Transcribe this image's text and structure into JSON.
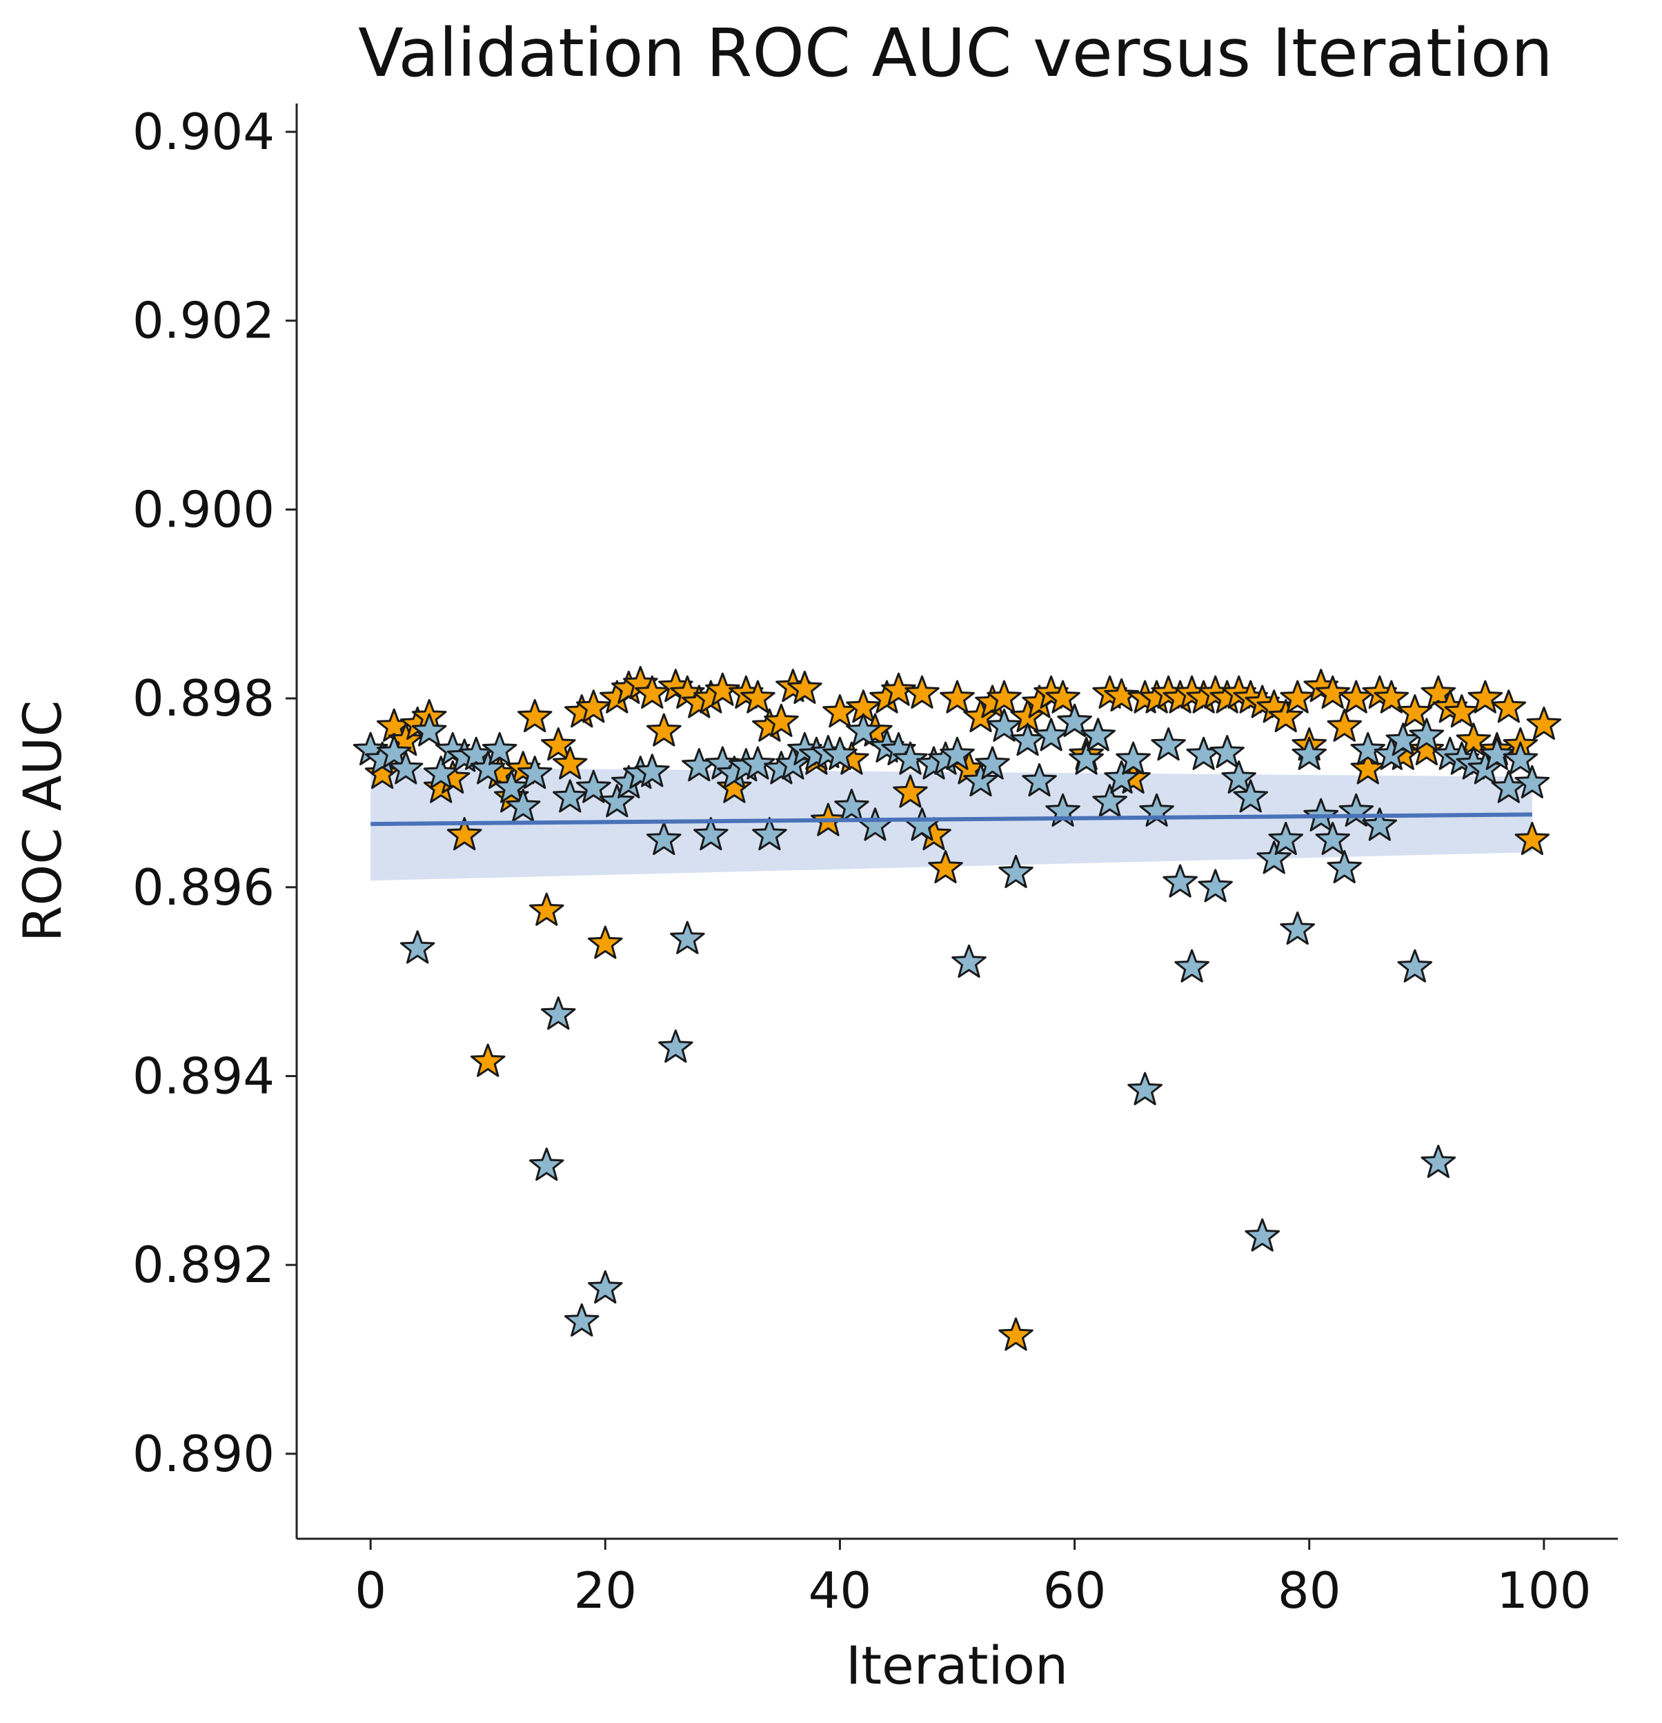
{
  "chart_data": {
    "type": "scatter",
    "title": "Validation ROC AUC versus Iteration",
    "xlabel": "Iteration",
    "ylabel": "ROC AUC",
    "xlim": [
      -6.3,
      106.3
    ],
    "ylim": [
      0.8891,
      0.9043
    ],
    "xticks": [
      0,
      20,
      40,
      60,
      80,
      100
    ],
    "yticks": [
      0.89,
      0.892,
      0.894,
      0.896,
      0.898,
      0.9,
      0.902,
      0.904
    ],
    "xtick_labels": [
      "0",
      "20",
      "40",
      "60",
      "80",
      "100"
    ],
    "ytick_labels": [
      "0.890",
      "0.892",
      "0.894",
      "0.896",
      "0.898",
      "0.900",
      "0.902",
      "0.904"
    ],
    "grid": false,
    "series": [
      {
        "name": "orange",
        "color": "#f5a000",
        "marker": "star",
        "points": [
          [
            0,
            0.89745
          ],
          [
            1,
            0.8972
          ],
          [
            2,
            0.8977
          ],
          [
            3,
            0.89755
          ],
          [
            4,
            0.89772
          ],
          [
            5,
            0.8978
          ],
          [
            6,
            0.89705
          ],
          [
            7,
            0.89715
          ],
          [
            8,
            0.89655
          ],
          [
            10,
            0.89415
          ],
          [
            11,
            0.8972
          ],
          [
            12,
            0.89695
          ],
          [
            13,
            0.89725
          ],
          [
            14,
            0.8978
          ],
          [
            15,
            0.89575
          ],
          [
            16,
            0.8975
          ],
          [
            17,
            0.8973
          ],
          [
            18,
            0.89785
          ],
          [
            19,
            0.8979
          ],
          [
            20,
            0.8954
          ],
          [
            21,
            0.898
          ],
          [
            22,
            0.8981
          ],
          [
            23,
            0.89815
          ],
          [
            24,
            0.89805
          ],
          [
            25,
            0.89765
          ],
          [
            26,
            0.89812
          ],
          [
            27,
            0.89805
          ],
          [
            28,
            0.89795
          ],
          [
            29,
            0.898
          ],
          [
            30,
            0.89808
          ],
          [
            31,
            0.89705
          ],
          [
            32,
            0.89805
          ],
          [
            33,
            0.898
          ],
          [
            34,
            0.8977
          ],
          [
            35,
            0.89775
          ],
          [
            36,
            0.89812
          ],
          [
            37,
            0.8981
          ],
          [
            38,
            0.89735
          ],
          [
            39,
            0.8967
          ],
          [
            40,
            0.89785
          ],
          [
            41,
            0.89735
          ],
          [
            42,
            0.8979
          ],
          [
            43,
            0.89765
          ],
          [
            44,
            0.898
          ],
          [
            45,
            0.89808
          ],
          [
            46,
            0.897
          ],
          [
            47,
            0.89805
          ],
          [
            48,
            0.89655
          ],
          [
            49,
            0.8962
          ],
          [
            50,
            0.898
          ],
          [
            51,
            0.89725
          ],
          [
            52,
            0.8978
          ],
          [
            53,
            0.89795
          ],
          [
            54,
            0.898
          ],
          [
            55,
            0.89125
          ],
          [
            56,
            0.8978
          ],
          [
            57,
            0.89795
          ],
          [
            58,
            0.89805
          ],
          [
            59,
            0.898
          ],
          [
            60,
            0.89775
          ],
          [
            61,
            0.8974
          ],
          [
            62,
            0.8976
          ],
          [
            63,
            0.89805
          ],
          [
            64,
            0.89802
          ],
          [
            65,
            0.89715
          ],
          [
            66,
            0.898
          ],
          [
            67,
            0.898
          ],
          [
            68,
            0.89805
          ],
          [
            69,
            0.898
          ],
          [
            70,
            0.89805
          ],
          [
            71,
            0.898
          ],
          [
            72,
            0.89805
          ],
          [
            73,
            0.898
          ],
          [
            74,
            0.89805
          ],
          [
            75,
            0.898
          ],
          [
            76,
            0.89795
          ],
          [
            77,
            0.8979
          ],
          [
            78,
            0.8978
          ],
          [
            79,
            0.898
          ],
          [
            80,
            0.8975
          ],
          [
            81,
            0.89812
          ],
          [
            82,
            0.89805
          ],
          [
            83,
            0.8977
          ],
          [
            84,
            0.898
          ],
          [
            85,
            0.89725
          ],
          [
            86,
            0.89805
          ],
          [
            87,
            0.898
          ],
          [
            88,
            0.8974
          ],
          [
            89,
            0.89785
          ],
          [
            90,
            0.89745
          ],
          [
            91,
            0.89805
          ],
          [
            92,
            0.8979
          ],
          [
            93,
            0.89785
          ],
          [
            94,
            0.89755
          ],
          [
            95,
            0.898
          ],
          [
            96,
            0.89745
          ],
          [
            97,
            0.8979
          ],
          [
            98,
            0.8975
          ],
          [
            99,
            0.8965
          ],
          [
            100,
            0.89772
          ]
        ]
      },
      {
        "name": "blue",
        "color": "#8cb7cf",
        "marker": "star",
        "points": [
          [
            0,
            0.89745
          ],
          [
            1,
            0.89735
          ],
          [
            2,
            0.89742
          ],
          [
            3,
            0.89725
          ],
          [
            4,
            0.89535
          ],
          [
            5,
            0.89765
          ],
          [
            6,
            0.8972
          ],
          [
            7,
            0.89745
          ],
          [
            8,
            0.89738
          ],
          [
            9,
            0.8974
          ],
          [
            10,
            0.89725
          ],
          [
            11,
            0.89745
          ],
          [
            12,
            0.89705
          ],
          [
            13,
            0.89685
          ],
          [
            14,
            0.8972
          ],
          [
            15,
            0.89305
          ],
          [
            16,
            0.89465
          ],
          [
            17,
            0.89695
          ],
          [
            18,
            0.8914
          ],
          [
            19,
            0.89705
          ],
          [
            20,
            0.89175
          ],
          [
            21,
            0.8969
          ],
          [
            22,
            0.8971
          ],
          [
            23,
            0.8972
          ],
          [
            24,
            0.89722
          ],
          [
            25,
            0.8965
          ],
          [
            26,
            0.8943
          ],
          [
            27,
            0.89545
          ],
          [
            28,
            0.89728
          ],
          [
            29,
            0.89655
          ],
          [
            30,
            0.8973
          ],
          [
            31,
            0.8972
          ],
          [
            32,
            0.89728
          ],
          [
            33,
            0.8973
          ],
          [
            34,
            0.89655
          ],
          [
            35,
            0.89725
          ],
          [
            36,
            0.8973
          ],
          [
            37,
            0.89745
          ],
          [
            38,
            0.8974
          ],
          [
            39,
            0.89742
          ],
          [
            40,
            0.8974
          ],
          [
            41,
            0.89685
          ],
          [
            42,
            0.89765
          ],
          [
            43,
            0.89665
          ],
          [
            44,
            0.89748
          ],
          [
            45,
            0.89745
          ],
          [
            46,
            0.89735
          ],
          [
            47,
            0.89665
          ],
          [
            48,
            0.8973
          ],
          [
            49,
            0.89735
          ],
          [
            50,
            0.8974
          ],
          [
            51,
            0.8952
          ],
          [
            52,
            0.89712
          ],
          [
            53,
            0.8973
          ],
          [
            54,
            0.8977
          ],
          [
            55,
            0.89615
          ],
          [
            56,
            0.89755
          ],
          [
            57,
            0.89712
          ],
          [
            58,
            0.8976
          ],
          [
            59,
            0.8968
          ],
          [
            60,
            0.89775
          ],
          [
            61,
            0.89735
          ],
          [
            62,
            0.8976
          ],
          [
            63,
            0.8969
          ],
          [
            64,
            0.89715
          ],
          [
            65,
            0.89735
          ],
          [
            66,
            0.89385
          ],
          [
            67,
            0.8968
          ],
          [
            68,
            0.8975
          ],
          [
            69,
            0.89605
          ],
          [
            70,
            0.89515
          ],
          [
            71,
            0.8974
          ],
          [
            72,
            0.896
          ],
          [
            73,
            0.89742
          ],
          [
            74,
            0.89715
          ],
          [
            75,
            0.89695
          ],
          [
            76,
            0.8923
          ],
          [
            77,
            0.8963
          ],
          [
            78,
            0.8965
          ],
          [
            79,
            0.89555
          ],
          [
            80,
            0.8974
          ],
          [
            81,
            0.89675
          ],
          [
            82,
            0.8965
          ],
          [
            83,
            0.8962
          ],
          [
            84,
            0.8968
          ],
          [
            85,
            0.89745
          ],
          [
            86,
            0.89665
          ],
          [
            87,
            0.8974
          ],
          [
            88,
            0.89755
          ],
          [
            89,
            0.89515
          ],
          [
            90,
            0.8976
          ],
          [
            91,
            0.89308
          ],
          [
            92,
            0.8974
          ],
          [
            93,
            0.89735
          ],
          [
            94,
            0.8973
          ],
          [
            95,
            0.89725
          ],
          [
            96,
            0.8974
          ],
          [
            97,
            0.89705
          ],
          [
            98,
            0.89735
          ],
          [
            99,
            0.8971
          ]
        ]
      }
    ],
    "regression": {
      "name": "linear fit",
      "color": "#4a72b8",
      "band_color": "#c8d6ec",
      "x": [
        0,
        99
      ],
      "y": [
        0.89667,
        0.89677
      ],
      "ci_lower": [
        0.89607,
        0.89637
      ],
      "ci_upper": [
        0.89727,
        0.89717
      ]
    }
  }
}
